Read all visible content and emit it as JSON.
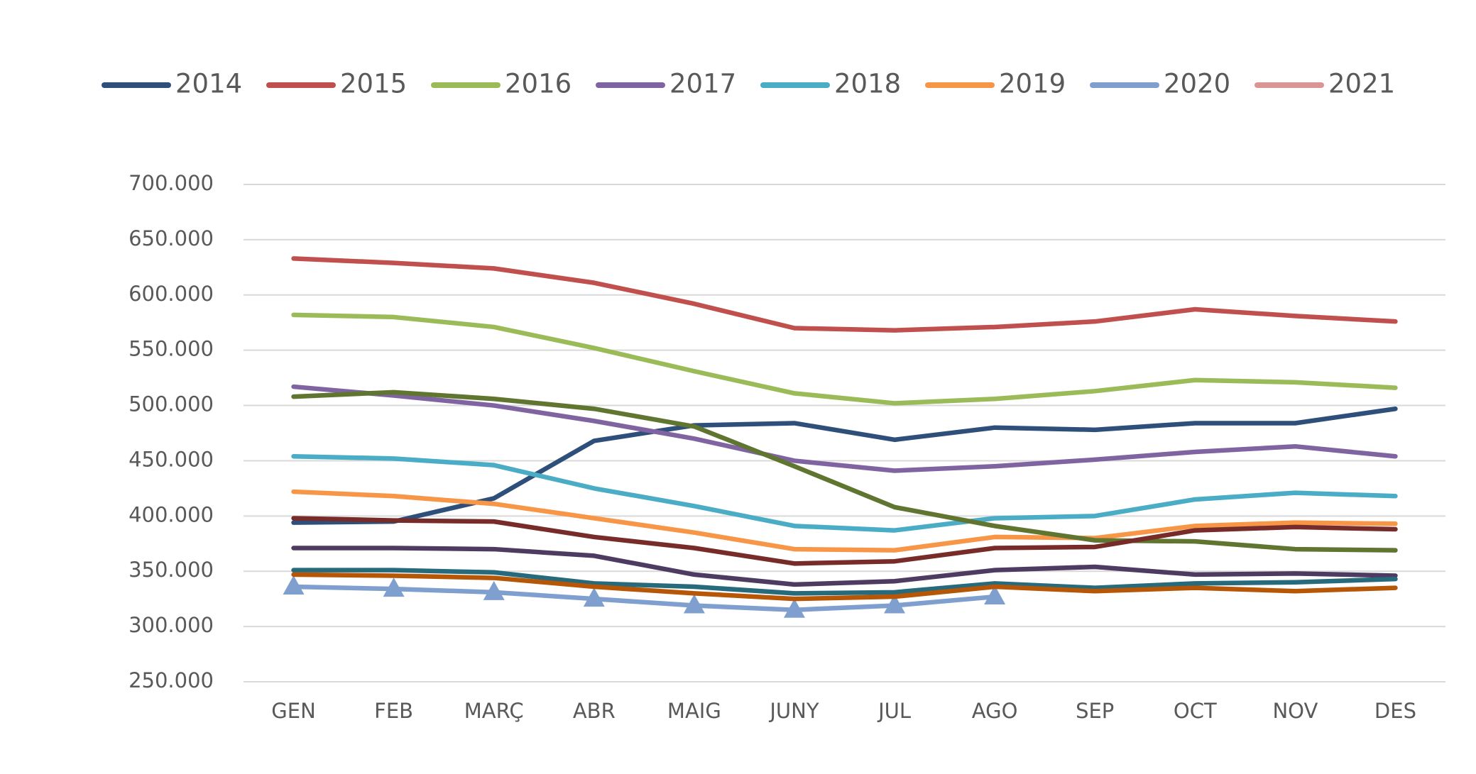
{
  "chart_data": {
    "type": "line",
    "categories": [
      "GEN",
      "FEB",
      "MARÇ",
      "ABR",
      "MAIG",
      "JUNY",
      "JUL",
      "AGO",
      "SEP",
      "OCT",
      "NOV",
      "DES"
    ],
    "series": [
      {
        "name": "2014",
        "color": "#2e4f7a",
        "values": [
          394000,
          395000,
          416000,
          468000,
          482000,
          484000,
          469000,
          480000,
          478000,
          484000,
          484000,
          497000
        ]
      },
      {
        "name": "2015",
        "color": "#c0504d",
        "values": [
          633000,
          629000,
          624000,
          611000,
          592000,
          570000,
          568000,
          571000,
          576000,
          587000,
          581000,
          576000
        ]
      },
      {
        "name": "2016",
        "color": "#9bbb59",
        "values": [
          582000,
          580000,
          571000,
          552000,
          531000,
          511000,
          502000,
          506000,
          513000,
          523000,
          521000,
          516000
        ]
      },
      {
        "name": "2017",
        "color": "#8064a2",
        "values": [
          517000,
          509000,
          500000,
          486000,
          470000,
          450000,
          441000,
          445000,
          451000,
          458000,
          463000,
          454000
        ]
      },
      {
        "name": "2018",
        "color": "#4bacc6",
        "values": [
          454000,
          452000,
          446000,
          425000,
          409000,
          391000,
          387000,
          398000,
          400000,
          415000,
          421000,
          418000
        ]
      },
      {
        "name": "2019",
        "color": "#f79646",
        "values": [
          422000,
          418000,
          411000,
          398000,
          385000,
          370000,
          369000,
          381000,
          380000,
          391000,
          394000,
          393000
        ]
      },
      {
        "name": "2020",
        "color": "#7f9fcf",
        "marker": "triangle",
        "values": [
          336000,
          334000,
          331000,
          325000,
          319000,
          315000,
          319000,
          327000,
          null,
          null,
          null,
          null
        ]
      },
      {
        "name": "2021",
        "color": "#d99694",
        "values": [
          null,
          null,
          null,
          null,
          null,
          null,
          null,
          null,
          null,
          null,
          null,
          null
        ]
      },
      {
        "color": "#5f7530",
        "values": [
          508000,
          512000,
          506000,
          497000,
          481000,
          445000,
          408000,
          391000,
          378000,
          377000,
          370000,
          369000
        ]
      },
      {
        "color": "#772c2a",
        "values": [
          398000,
          396000,
          395000,
          381000,
          371000,
          357000,
          359000,
          371000,
          372000,
          387000,
          390000,
          388000
        ]
      },
      {
        "color": "#4d3b62",
        "values": [
          371000,
          371000,
          370000,
          364000,
          347000,
          338000,
          341000,
          351000,
          354000,
          347000,
          348000,
          346000
        ]
      },
      {
        "color": "#276a7c",
        "values": [
          351000,
          351000,
          349000,
          339000,
          336000,
          330000,
          331000,
          339000,
          335000,
          339000,
          340000,
          343000
        ]
      },
      {
        "color": "#b65708",
        "values": [
          347000,
          346000,
          344000,
          336000,
          330000,
          325000,
          327000,
          336000,
          332000,
          335000,
          332000,
          335000
        ]
      }
    ],
    "ylim": [
      250000,
      700000
    ],
    "yticks": [
      {
        "value": 250000,
        "label": "250.000"
      },
      {
        "value": 300000,
        "label": "300.000"
      },
      {
        "value": 350000,
        "label": "350.000"
      },
      {
        "value": 400000,
        "label": "400.000"
      },
      {
        "value": 450000,
        "label": "450.000"
      },
      {
        "value": 500000,
        "label": "500.000"
      },
      {
        "value": 550000,
        "label": "550.000"
      },
      {
        "value": 600000,
        "label": "600.000"
      },
      {
        "value": 650000,
        "label": "650.000"
      },
      {
        "value": 700000,
        "label": "700.000"
      }
    ],
    "grid": true,
    "legend": "top"
  }
}
